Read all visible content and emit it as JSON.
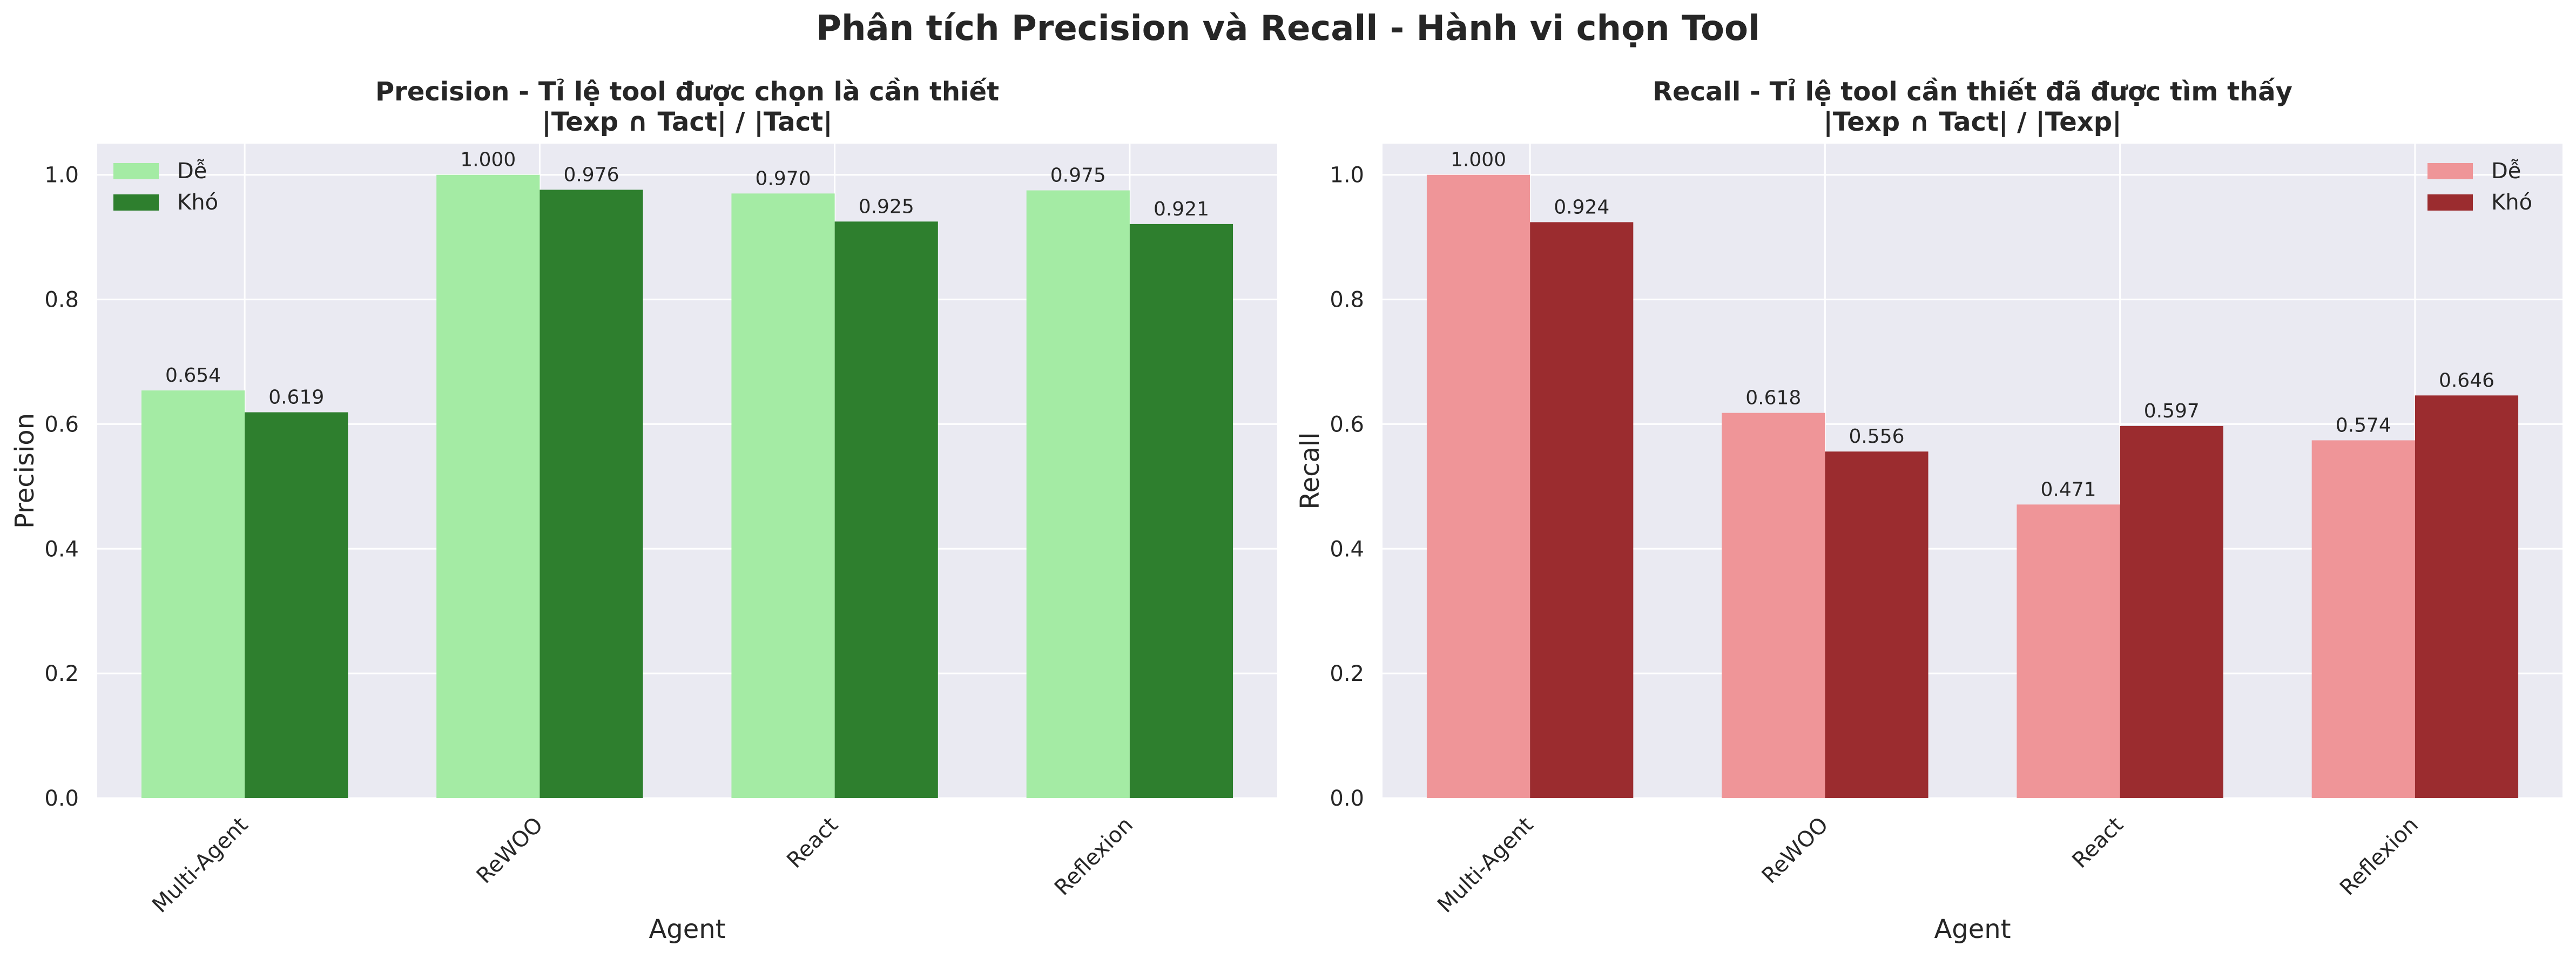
{
  "figure_title": "Phân tích Precision và Recall - Hành vi chọn Tool",
  "colors": {
    "axes_bg": "#eaeaf2",
    "grid": "#ffffff",
    "precision_easy": "#a4eba4",
    "precision_hard": "#2e7f2e",
    "recall_easy": "#ef9598",
    "recall_hard": "#9b2c2f"
  },
  "chart_data": [
    {
      "type": "bar",
      "title": "Precision - Tỉ lệ tool được chọn là cần thiết",
      "subtitle": "|Texp ∩ Tact| / |Tact|",
      "xlabel": "Agent",
      "ylabel": "Precision",
      "categories": [
        "Multi-Agent",
        "ReWOO",
        "React",
        "Reflexion"
      ],
      "series": [
        {
          "name": "Dễ",
          "values": [
            0.654,
            1.0,
            0.97,
            0.975
          ],
          "labels": [
            "0.654",
            "1.000",
            "0.970",
            "0.975"
          ]
        },
        {
          "name": "Khó",
          "values": [
            0.619,
            0.976,
            0.925,
            0.921
          ],
          "labels": [
            "0.619",
            "0.976",
            "0.925",
            "0.921"
          ]
        }
      ],
      "ylim": [
        0,
        1.05
      ],
      "yticks": [
        "0.0",
        "0.2",
        "0.4",
        "0.6",
        "0.8",
        "1.0"
      ],
      "legend": "top-left",
      "grid": true
    },
    {
      "type": "bar",
      "title": "Recall - Tỉ lệ tool cần thiết đã được tìm thấy",
      "subtitle": "|Texp ∩ Tact| / |Texp|",
      "xlabel": "Agent",
      "ylabel": "Recall",
      "categories": [
        "Multi-Agent",
        "ReWOO",
        "React",
        "Reflexion"
      ],
      "series": [
        {
          "name": "Dễ",
          "values": [
            1.0,
            0.618,
            0.471,
            0.574
          ],
          "labels": [
            "1.000",
            "0.618",
            "0.471",
            "0.574"
          ]
        },
        {
          "name": "Khó",
          "values": [
            0.924,
            0.556,
            0.597,
            0.646
          ],
          "labels": [
            "0.924",
            "0.556",
            "0.597",
            "0.646"
          ]
        }
      ],
      "ylim": [
        0,
        1.05
      ],
      "yticks": [
        "0.0",
        "0.2",
        "0.4",
        "0.6",
        "0.8",
        "1.0"
      ],
      "legend": "top-right",
      "grid": true
    }
  ]
}
